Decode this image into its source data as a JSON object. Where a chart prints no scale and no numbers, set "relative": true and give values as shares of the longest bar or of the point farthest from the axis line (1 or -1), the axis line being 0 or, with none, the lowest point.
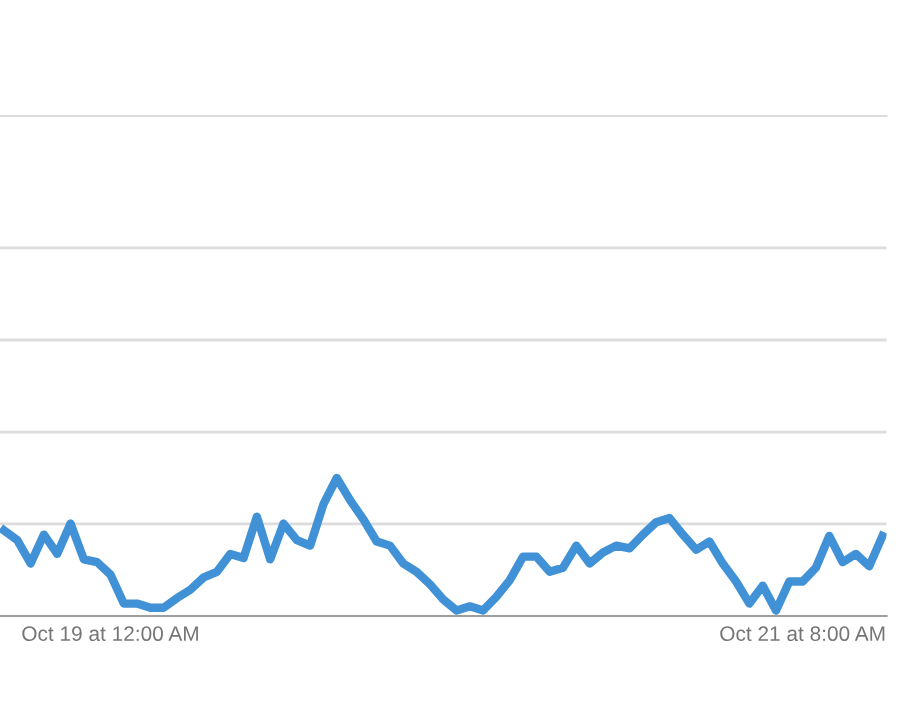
{
  "chart_data": {
    "type": "line",
    "relative": true,
    "ref_lines": [
      {
        "axis": "y",
        "value": 0.667,
        "color": "#dcdcdc"
      },
      {
        "axis": "y",
        "value": 1.333,
        "color": "#dcdcdc"
      },
      {
        "axis": "y",
        "value": 2,
        "color": "#dcdcdc"
      },
      {
        "axis": "y",
        "value": 2.667,
        "color": "#dcdcdc"
      }
    ],
    "legend": false,
    "marker": "none",
    "line_style": "solid",
    "categories": [
      null,
      null,
      null,
      null,
      null,
      null,
      null,
      null,
      "Oct 19 at 12:00 AM",
      null,
      null,
      null,
      null,
      null,
      null,
      null,
      null,
      null,
      null,
      null,
      null,
      null,
      null,
      null,
      null,
      null,
      null,
      null,
      null,
      null,
      null,
      null,
      null,
      null,
      null,
      null,
      null,
      null,
      null,
      null,
      null,
      null,
      null,
      null,
      null,
      null,
      null,
      null,
      null,
      null,
      null,
      null,
      null,
      null,
      null,
      null,
      null,
      null,
      null,
      null,
      "Oct 21 at 8:00 AM",
      null,
      null,
      null,
      null,
      null,
      null
    ],
    "series": [
      {
        "color": "#4191d6",
        "values": [
          0.62,
          0.55,
          0.38,
          0.59,
          0.45,
          0.67,
          0.41,
          0.39,
          0.3,
          0.09,
          0.09,
          0.06,
          0.06,
          0.13,
          0.19,
          0.28,
          0.32,
          0.45,
          0.42,
          0.72,
          0.41,
          0.67,
          0.55,
          0.51,
          0.81,
          1,
          0.84,
          0.7,
          0.54,
          0.51,
          0.38,
          0.32,
          0.23,
          0.12,
          0.04,
          0.07,
          0.04,
          0.14,
          0.26,
          0.43,
          0.43,
          0.32,
          0.35,
          0.51,
          0.38,
          0.46,
          0.51,
          0.49,
          0.59,
          0.68,
          0.71,
          0.59,
          0.48,
          0.54,
          0.38,
          0.25,
          0.09,
          0.22,
          0.04,
          0.25,
          0.25,
          0.35,
          0.58,
          0.39,
          0.45,
          0.36,
          0.58
        ]
      }
    ]
  }
}
